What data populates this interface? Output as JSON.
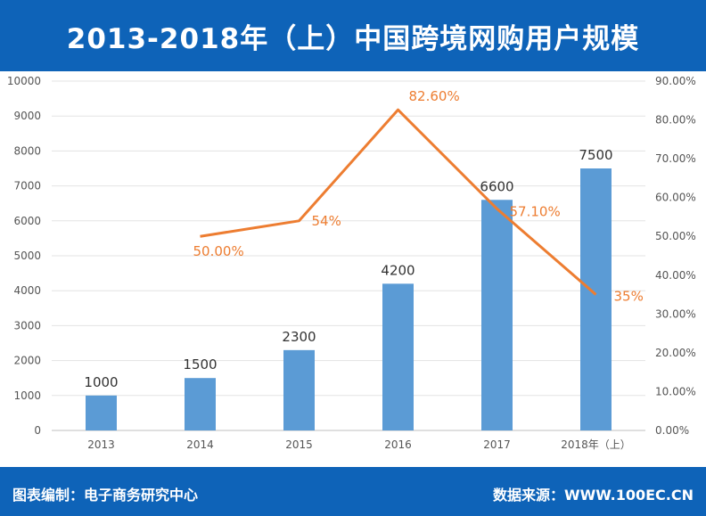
{
  "title": "2013-2018年（上）中国跨境网购用户规模",
  "footer": {
    "left": "图表编制：电子商务研究中心",
    "right": "数据来源：WWW.100EC.CN"
  },
  "colors": {
    "band": "#0e63b8",
    "bar": "#5b9bd5",
    "line": "#ed7d31"
  },
  "chart_data": {
    "type": "bar",
    "categories": [
      "2013",
      "2014",
      "2015",
      "2016",
      "2017",
      "2018年（上）"
    ],
    "series": [
      {
        "type": "bar",
        "axis": "left",
        "values": [
          1000,
          1500,
          2300,
          4200,
          6600,
          7500
        ],
        "labels": [
          "1000",
          "1500",
          "2300",
          "4200",
          "6600",
          "7500"
        ]
      },
      {
        "type": "line",
        "axis": "right",
        "values": [
          null,
          50.0,
          54.0,
          82.6,
          57.1,
          35.0
        ],
        "labels": [
          "",
          "50.00%",
          "54%",
          "82.60%",
          "57.10%",
          "35%"
        ]
      }
    ],
    "left_axis": {
      "ylim": [
        0,
        10000
      ],
      "ticks": [
        "0",
        "1000",
        "2000",
        "3000",
        "4000",
        "5000",
        "6000",
        "7000",
        "8000",
        "9000",
        "10000"
      ]
    },
    "right_axis": {
      "ylim": [
        0,
        90
      ],
      "ticks": [
        "0.00%",
        "10.00%",
        "20.00%",
        "30.00%",
        "40.00%",
        "50.00%",
        "60.00%",
        "70.00%",
        "80.00%",
        "90.00%"
      ]
    },
    "grid": true,
    "legend": "none"
  }
}
